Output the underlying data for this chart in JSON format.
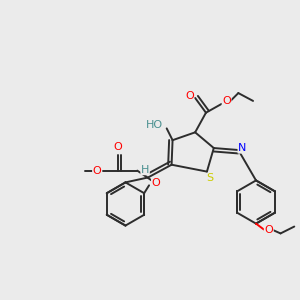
{
  "background_color": "#ebebeb",
  "bond_color": "#2d2d2d",
  "atom_colors": {
    "O": "#ff0000",
    "N": "#0000ff",
    "S": "#cccc00",
    "H_label": "#4a9090",
    "C": "#2d2d2d"
  },
  "figsize": [
    3.0,
    3.0
  ],
  "dpi": 100
}
